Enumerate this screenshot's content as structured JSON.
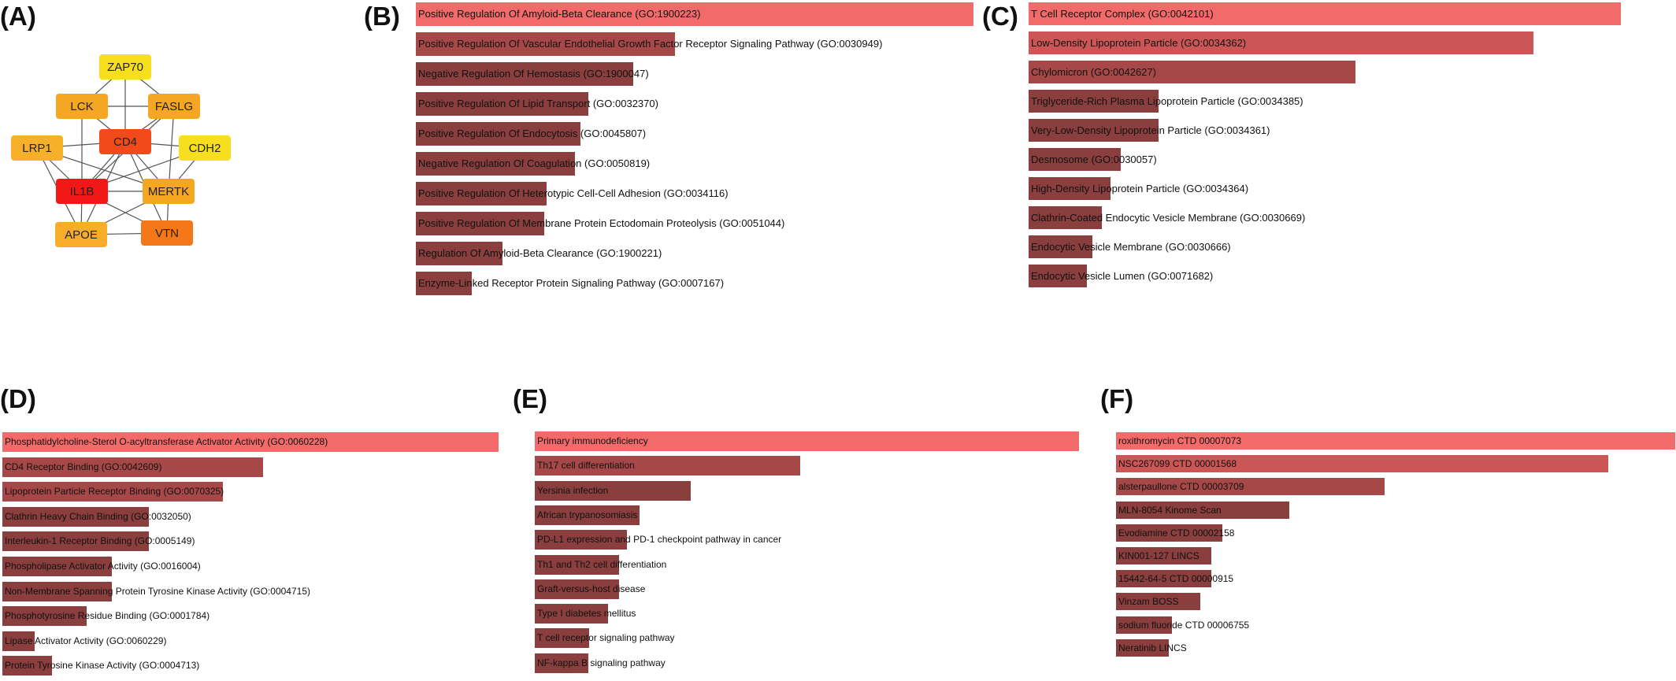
{
  "panel_labels": {
    "a": "(A)",
    "b": "(B)",
    "c": "(C)",
    "d": "(D)",
    "e": "(E)",
    "f": "(F)"
  },
  "colors": {
    "top_bar": "#f26a6a",
    "second_bar": "#cc5555",
    "mid_bar": "#a64848",
    "low_bar": "#8a3e3e"
  },
  "network": {
    "nodes": [
      {
        "id": "ZAP70",
        "color": "#f7df1e"
      },
      {
        "id": "LCK",
        "color": "#f5a623"
      },
      {
        "id": "FASLG",
        "color": "#f5a623"
      },
      {
        "id": "LRP1",
        "color": "#f7b02a"
      },
      {
        "id": "CD4",
        "color": "#f24a1a"
      },
      {
        "id": "CDH2",
        "color": "#f7df1e"
      },
      {
        "id": "IL1B",
        "color": "#f21818"
      },
      {
        "id": "MERTK",
        "color": "#f5a623"
      },
      {
        "id": "APOE",
        "color": "#f7ad2a"
      },
      {
        "id": "VTN",
        "color": "#f57818"
      }
    ],
    "edges": [
      [
        "ZAP70",
        "LCK"
      ],
      [
        "ZAP70",
        "CD4"
      ],
      [
        "ZAP70",
        "FASLG"
      ],
      [
        "LCK",
        "CD4"
      ],
      [
        "LCK",
        "FASLG"
      ],
      [
        "LCK",
        "IL1B"
      ],
      [
        "FASLG",
        "CD4"
      ],
      [
        "FASLG",
        "IL1B"
      ],
      [
        "FASLG",
        "MERTK"
      ],
      [
        "LRP1",
        "CD4"
      ],
      [
        "LRP1",
        "IL1B"
      ],
      [
        "LRP1",
        "APOE"
      ],
      [
        "LRP1",
        "MERTK"
      ],
      [
        "CD4",
        "IL1B"
      ],
      [
        "CD4",
        "MERTK"
      ],
      [
        "CD4",
        "APOE"
      ],
      [
        "CD4",
        "VTN"
      ],
      [
        "CD4",
        "CDH2"
      ],
      [
        "CDH2",
        "MERTK"
      ],
      [
        "CDH2",
        "IL1B"
      ],
      [
        "IL1B",
        "MERTK"
      ],
      [
        "IL1B",
        "APOE"
      ],
      [
        "IL1B",
        "VTN"
      ],
      [
        "MERTK",
        "APOE"
      ],
      [
        "MERTK",
        "VTN"
      ],
      [
        "APOE",
        "VTN"
      ]
    ]
  },
  "chart_data": [
    {
      "panel": "(B)",
      "type": "bar",
      "orientation": "horizontal",
      "value_scale": "relative",
      "categories": [
        "Positive Regulation Of Amyloid-Beta Clearance (GO:1900223)",
        "Positive Regulation Of Vascular Endothelial Growth Factor Receptor Signaling Pathway (GO:0030949)",
        "Negative Regulation Of Hemostasis (GO:1900047)",
        "Positive Regulation Of Lipid Transport (GO:0032370)",
        "Positive Regulation Of Endocytosis (GO:0045807)",
        "Negative Regulation Of Coagulation (GO:0050819)",
        "Positive Regulation Of Heterotypic Cell-Cell Adhesion (GO:0034116)",
        "Positive Regulation Of Membrane Protein Ectodomain Proteolysis (GO:0051044)",
        "Regulation Of Amyloid-Beta Clearance (GO:1900221)",
        "Enzyme-Linked Receptor Protein Signaling Pathway (GO:0007167)"
      ],
      "values": [
        1.0,
        0.465,
        0.39,
        0.31,
        0.295,
        0.285,
        0.235,
        0.23,
        0.155,
        0.1
      ]
    },
    {
      "panel": "(C)",
      "type": "bar",
      "orientation": "horizontal",
      "value_scale": "relative",
      "categories": [
        "T Cell Receptor Complex (GO:0042101)",
        "Low-Density Lipoprotein Particle (GO:0034362)",
        "Chylomicron (GO:0042627)",
        "Triglyceride-Rich Plasma Lipoprotein Particle (GO:0034385)",
        "Very-Low-Density Lipoprotein Particle (GO:0034361)",
        "Desmosome (GO:0030057)",
        "High-Density Lipoprotein Particle (GO:0034364)",
        "Clathrin-Coated Endocytic Vesicle Membrane (GO:0030669)",
        "Endocytic Vesicle Membrane (GO:0030666)",
        "Endocytic Vesicle Lumen (GO:0071682)"
      ],
      "values": [
        1.0,
        0.852,
        0.552,
        0.22,
        0.22,
        0.155,
        0.138,
        0.124,
        0.108,
        0.098
      ]
    },
    {
      "panel": "(D)",
      "type": "bar",
      "orientation": "horizontal",
      "value_scale": "relative",
      "categories": [
        "Phosphatidylcholine-Sterol O-acyltransferase Activator Activity (GO:0060228)",
        "CD4 Receptor Binding (GO:0042609)",
        "Lipoprotein Particle Receptor Binding (GO:0070325)",
        "Clathrin Heavy Chain Binding (GO:0032050)",
        "Interleukin-1 Receptor Binding (GO:0005149)",
        "Phospholipase Activator Activity (GO:0016004)",
        "Non-Membrane Spanning Protein Tyrosine Kinase Activity (GO:0004715)",
        "Phosphotyrosine Residue Binding (GO:0001784)",
        "Lipase Activator Activity (GO:0060229)",
        "Protein Tyrosine Kinase Activity (GO:0004713)"
      ],
      "values": [
        1.0,
        0.525,
        0.445,
        0.295,
        0.295,
        0.22,
        0.22,
        0.17,
        0.065,
        0.1
      ]
    },
    {
      "panel": "(E)",
      "type": "bar",
      "orientation": "horizontal",
      "value_scale": "relative",
      "categories": [
        "Primary immunodeficiency",
        "Th17 cell differentiation",
        "Yersinia infection",
        "African trypanosomiasis",
        "PD-L1 expression and PD-1 checkpoint pathway in cancer",
        "Th1 and Th2 cell differentiation",
        "Graft-versus-host disease",
        "Type I diabetes mellitus",
        "T cell receptor signaling pathway",
        "NF-kappa B signaling pathway"
      ],
      "values": [
        1.0,
        0.487,
        0.287,
        0.193,
        0.17,
        0.155,
        0.155,
        0.135,
        0.1,
        0.098
      ]
    },
    {
      "panel": "(F)",
      "type": "bar",
      "orientation": "horizontal",
      "value_scale": "relative",
      "categories": [
        "roxithromycin CTD 00007073",
        "NSC267099 CTD 00001568",
        "alsterpaullone CTD 00003709",
        "MLN-8054 Kinome Scan",
        "Evodiamine CTD 00002158",
        "KIN001-127 LINCS",
        "15442-64-5 CTD 00000915",
        "Vinzam BOSS",
        "sodium fluoride CTD 00006755",
        "Neratinib LINCS"
      ],
      "values": [
        1.0,
        0.88,
        0.48,
        0.31,
        0.19,
        0.17,
        0.17,
        0.15,
        0.1,
        0.095
      ]
    }
  ]
}
